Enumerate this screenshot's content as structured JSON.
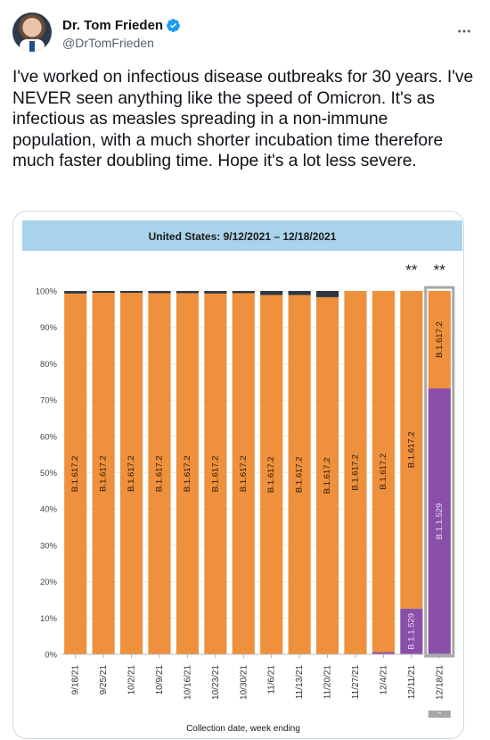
{
  "tweet": {
    "display_name": "Dr. Tom Frieden",
    "handle": "@DrTomFrieden",
    "text": "I've worked on infectious disease outbreaks for 30 years. I've NEVER seen anything like the speed of Omicron. It's as infectious as measles spreading in a non-immune population, with a much shorter incubation time therefore much faster doubling time. Hope it's a lot less severe.",
    "icons": {
      "verified": "verified-badge-icon",
      "more": "more-options-icon"
    },
    "colors": {
      "verified": "#1d9bf0",
      "handle": "#536471"
    }
  },
  "chart_data": {
    "type": "bar",
    "stacked": true,
    "title": "United States: 9/12/2021 – 12/18/2021",
    "xlabel": "Collection date, week ending",
    "ylabel": "",
    "ylim": [
      0,
      100
    ],
    "yticks": [
      "0%",
      "10%",
      "20%",
      "30%",
      "40%",
      "50%",
      "60%",
      "70%",
      "80%",
      "90%",
      "100%"
    ],
    "categories": [
      "9/18/21",
      "9/25/21",
      "10/2/21",
      "10/9/21",
      "10/16/21",
      "10/23/21",
      "10/30/21",
      "11/6/21",
      "11/13/21",
      "11/20/21",
      "11/27/21",
      "12/4/21",
      "12/11/21",
      "12/18/21"
    ],
    "series": [
      {
        "name": "B.1.1.529",
        "color": "#8a4fa8",
        "values": [
          0,
          0,
          0,
          0,
          0,
          0,
          0,
          0,
          0,
          0,
          0.1,
          0.6,
          12.6,
          73.2
        ]
      },
      {
        "name": "B.1.617.2",
        "color": "#ee903c",
        "values": [
          99.3,
          99.5,
          99.5,
          99.4,
          99.4,
          99.3,
          99.4,
          98.9,
          98.9,
          98.3,
          99.9,
          99.4,
          87.4,
          26.8
        ]
      },
      {
        "name": "",
        "color": "#2e3742",
        "values": [
          0.7,
          0.5,
          0.5,
          0.6,
          0.6,
          0.7,
          0.6,
          1.1,
          1.1,
          1.7,
          0,
          0,
          0,
          0
        ]
      }
    ],
    "bar_labels": {
      "B.1.617.2": "B.1.617.2",
      "B.1.1.529": "B.1.1.529"
    },
    "annotations": [
      {
        "category": "12/11/21",
        "text": "**"
      },
      {
        "category": "12/18/21",
        "text": "**"
      }
    ],
    "highlighted_category": "12/18/21",
    "colors": {
      "title_band": "#a9d3ea",
      "delta": "#ee903c",
      "omicron": "#8a4fa8",
      "other": "#2e3742",
      "highlight": "#a7a7a7"
    }
  }
}
